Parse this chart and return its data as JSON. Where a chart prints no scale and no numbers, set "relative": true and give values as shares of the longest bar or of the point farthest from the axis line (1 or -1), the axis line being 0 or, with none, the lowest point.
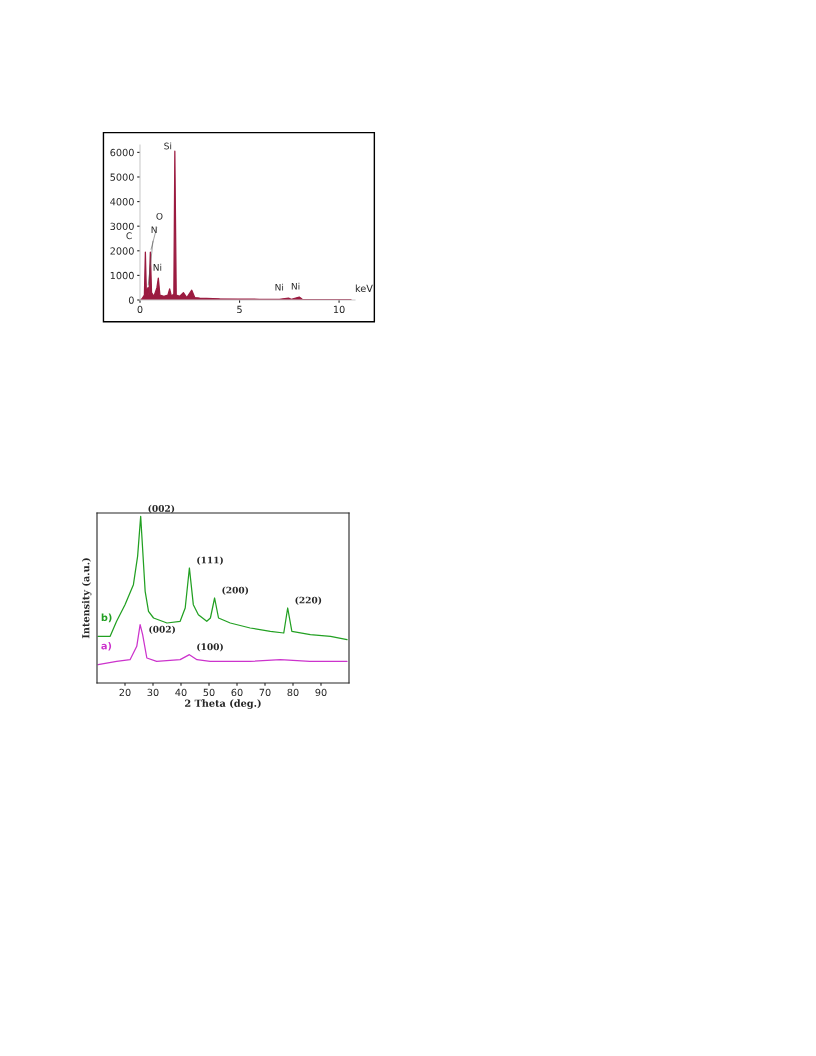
{
  "chart_data": [
    {
      "type": "area",
      "xlabel": "keV",
      "xlim": [
        0,
        10.8
      ],
      "ylim": [
        0,
        6300
      ],
      "xticks": [
        0,
        5,
        10
      ],
      "yticks": [
        0,
        1000,
        2000,
        3000,
        4000,
        5000,
        6000
      ],
      "grid": false,
      "legend": false,
      "series": [
        {
          "color": "#9b1b40",
          "x": [
            0,
            0.1,
            0.22,
            0.27,
            0.32,
            0.4,
            0.45,
            0.52,
            0.58,
            0.7,
            0.85,
            0.92,
            1.0,
            1.2,
            1.4,
            1.49,
            1.58,
            1.7,
            1.75,
            1.82,
            2.0,
            2.18,
            2.35,
            2.6,
            2.75,
            3.0,
            4,
            5,
            6,
            7,
            7.46,
            7.6,
            8.0,
            8.15,
            9,
            10,
            10.6
          ],
          "values": [
            0,
            50,
            200,
            1950,
            300,
            500,
            200,
            1950,
            300,
            150,
            500,
            890,
            200,
            150,
            200,
            450,
            150,
            250,
            6050,
            200,
            150,
            300,
            100,
            400,
            100,
            80,
            50,
            40,
            30,
            30,
            80,
            30,
            120,
            30,
            20,
            20,
            20
          ]
        }
      ],
      "annotations": [
        {
          "text": "C",
          "x": 0.27,
          "y": 1950
        },
        {
          "text": "N",
          "x": 0.4,
          "y": 500
        },
        {
          "text": "O",
          "x": 0.52,
          "y": 1950
        },
        {
          "text": "Ni",
          "x": 0.92,
          "y": 890
        },
        {
          "text": "Si",
          "x": 1.75,
          "y": 6050
        },
        {
          "text": "Ni",
          "x": 7.46,
          "y": 80
        },
        {
          "text": "Ni",
          "x": 8.0,
          "y": 120
        }
      ]
    },
    {
      "type": "line",
      "relative": true,
      "xlabel": "2 Theta (deg.)",
      "ylabel": "Intensity (a.u.)",
      "xlim": [
        10,
        100
      ],
      "xticks": [
        20,
        30,
        40,
        50,
        60,
        70,
        80,
        90
      ],
      "grid": false,
      "legend": false,
      "series": [
        {
          "name": "b)",
          "color": "#22a022",
          "x": [
            10.4,
            14.7,
            17,
            20,
            23,
            24.5,
            25.6,
            27.2,
            28.4,
            30.2,
            35,
            39.7,
            41.5,
            43,
            44.4,
            46.2,
            49.2,
            50.5,
            52,
            53.4,
            57.6,
            64.7,
            71.9,
            76.7,
            78.1,
            79.6,
            86.2,
            93.4,
            99.3
          ],
          "values": [
            0.28,
            0.28,
            0.37,
            0.47,
            0.59,
            0.76,
            1.0,
            0.55,
            0.43,
            0.39,
            0.36,
            0.37,
            0.45,
            0.69,
            0.47,
            0.41,
            0.37,
            0.39,
            0.51,
            0.39,
            0.36,
            0.33,
            0.31,
            0.3,
            0.45,
            0.31,
            0.29,
            0.28,
            0.26
          ]
        },
        {
          "name": "a)",
          "color": "#cc33cc",
          "x": [
            10.4,
            17,
            21.8,
            24.2,
            25.4,
            26.3,
            27.8,
            31.3,
            39.7,
            43,
            45.7,
            50.4,
            64.7,
            75.5,
            86,
            99.3
          ],
          "values": [
            0.11,
            0.13,
            0.14,
            0.22,
            0.35,
            0.29,
            0.15,
            0.13,
            0.14,
            0.17,
            0.14,
            0.13,
            0.13,
            0.14,
            0.13,
            0.13
          ]
        }
      ],
      "annotations": [
        {
          "text": "(002)",
          "x": 25.6,
          "y": 1.0
        },
        {
          "text": "(111)",
          "x": 43,
          "y": 0.69
        },
        {
          "text": "(200)",
          "x": 52,
          "y": 0.51
        },
        {
          "text": "(220)",
          "x": 78.1,
          "y": 0.45
        },
        {
          "text": "(002)",
          "x": 25.4,
          "y": 0.35
        },
        {
          "text": "(100)",
          "x": 43,
          "y": 0.17
        }
      ]
    }
  ]
}
